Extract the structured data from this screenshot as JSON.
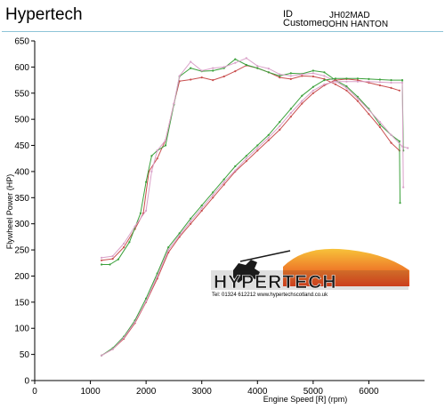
{
  "header": {
    "brand": "Hypertech",
    "id_label": "ID",
    "id_value": "JH02MAD",
    "customer_label": "Customer",
    "customer_value": "JOHN HANTON"
  },
  "logo": {
    "wordmark": "HYPERTECH",
    "contact": "Tel: 01324 612212   www.hypertechscotland.co.uk"
  },
  "chart_data": {
    "type": "line",
    "xlabel": "Engine Speed [R] (rpm)",
    "ylabel": "Flywheel Power (HP)",
    "xlim": [
      0,
      7000
    ],
    "ylim": [
      0,
      650
    ],
    "x_ticks": [
      0,
      1000,
      2000,
      3000,
      4000,
      5000,
      6000
    ],
    "y_ticks": [
      0,
      50,
      100,
      150,
      200,
      250,
      300,
      350,
      400,
      450,
      500,
      550,
      600,
      650
    ],
    "grid": false,
    "colors": {
      "run1_power": "#c94f4f",
      "run1_torque": "#c94f4f",
      "run2_power": "#3aa03a",
      "run2_torque": "#3aa03a",
      "run3_power": "#d9a0c8",
      "run3_torque": "#d9a0c8"
    },
    "series": [
      {
        "key": "run1_power",
        "x": [
          1200,
          1400,
          1600,
          1800,
          1950,
          2050,
          2200,
          2350,
          2500,
          2600,
          2800,
          3000,
          3200,
          3400,
          3600,
          3800,
          4000,
          4200,
          4400,
          4600,
          4800,
          5000,
          5200,
          5400,
          5600,
          5800,
          6000,
          6200,
          6400,
          6550
        ],
        "y": [
          230,
          233,
          255,
          290,
          320,
          400,
          425,
          460,
          530,
          573,
          576,
          580,
          575,
          582,
          592,
          603,
          598,
          590,
          580,
          577,
          583,
          582,
          577,
          567,
          555,
          535,
          510,
          485,
          455,
          440
        ]
      },
      {
        "key": "run2_power",
        "x": [
          1200,
          1350,
          1500,
          1700,
          1900,
          2000,
          2100,
          2200,
          2350,
          2500,
          2600,
          2800,
          3000,
          3200,
          3400,
          3600,
          3800,
          4000,
          4200,
          4400,
          4600,
          4800,
          5000,
          5200,
          5400,
          5600,
          5800,
          6000,
          6200,
          6400,
          6550,
          6560
        ],
        "y": [
          222,
          222,
          232,
          265,
          320,
          380,
          430,
          440,
          450,
          528,
          582,
          598,
          592,
          593,
          598,
          615,
          604,
          598,
          590,
          583,
          588,
          587,
          593,
          590,
          575,
          563,
          543,
          520,
          490,
          470,
          458,
          340
        ]
      },
      {
        "key": "run3_power",
        "x": [
          1200,
          1400,
          1600,
          1800,
          2000,
          2100,
          2200,
          2350,
          2500,
          2600,
          2800,
          3000,
          3200,
          3400,
          3600,
          3800,
          4000,
          4200,
          4400,
          4600,
          4800,
          5000,
          5200,
          5400,
          5600,
          5800,
          6000,
          6200,
          6400,
          6600,
          6700
        ],
        "y": [
          235,
          238,
          262,
          295,
          325,
          400,
          440,
          460,
          530,
          583,
          610,
          593,
          598,
          600,
          608,
          617,
          602,
          597,
          586,
          583,
          586,
          588,
          583,
          573,
          560,
          540,
          518,
          495,
          470,
          448,
          445
        ]
      },
      {
        "key": "run1_torque",
        "x": [
          1200,
          1400,
          1600,
          1800,
          2000,
          2200,
          2400,
          2600,
          2800,
          3000,
          3200,
          3400,
          3600,
          3800,
          4000,
          4200,
          4400,
          4600,
          4800,
          5000,
          5200,
          5400,
          5600,
          5800,
          6000,
          6200,
          6400,
          6550
        ],
        "y": [
          48,
          60,
          80,
          110,
          150,
          195,
          245,
          275,
          300,
          325,
          350,
          375,
          400,
          420,
          440,
          460,
          480,
          505,
          530,
          550,
          565,
          575,
          577,
          575,
          570,
          565,
          560,
          555
        ]
      },
      {
        "key": "run2_torque",
        "x": [
          1200,
          1400,
          1600,
          1800,
          2000,
          2200,
          2400,
          2600,
          2800,
          3000,
          3200,
          3400,
          3600,
          3800,
          4000,
          4200,
          4400,
          4600,
          4800,
          5000,
          5200,
          5400,
          5600,
          5800,
          6000,
          6200,
          6400,
          6600,
          6620
        ],
        "y": [
          48,
          62,
          84,
          115,
          157,
          205,
          255,
          282,
          310,
          335,
          360,
          385,
          410,
          430,
          450,
          470,
          495,
          520,
          545,
          562,
          575,
          578,
          578,
          578,
          577,
          576,
          575,
          575,
          440
        ]
      },
      {
        "key": "run3_torque",
        "x": [
          1200,
          1400,
          1600,
          1800,
          2000,
          2200,
          2400,
          2600,
          2800,
          3000,
          3200,
          3400,
          3600,
          3800,
          4000,
          4200,
          4400,
          4600,
          4800,
          5000,
          5200,
          5400,
          5600,
          5800,
          6000,
          6200,
          6400,
          6600,
          6620
        ],
        "y": [
          48,
          60,
          82,
          112,
          152,
          200,
          250,
          278,
          305,
          330,
          355,
          380,
          402,
          425,
          445,
          465,
          487,
          512,
          535,
          555,
          567,
          572,
          572,
          572,
          572,
          571,
          570,
          570,
          370
        ]
      }
    ]
  }
}
